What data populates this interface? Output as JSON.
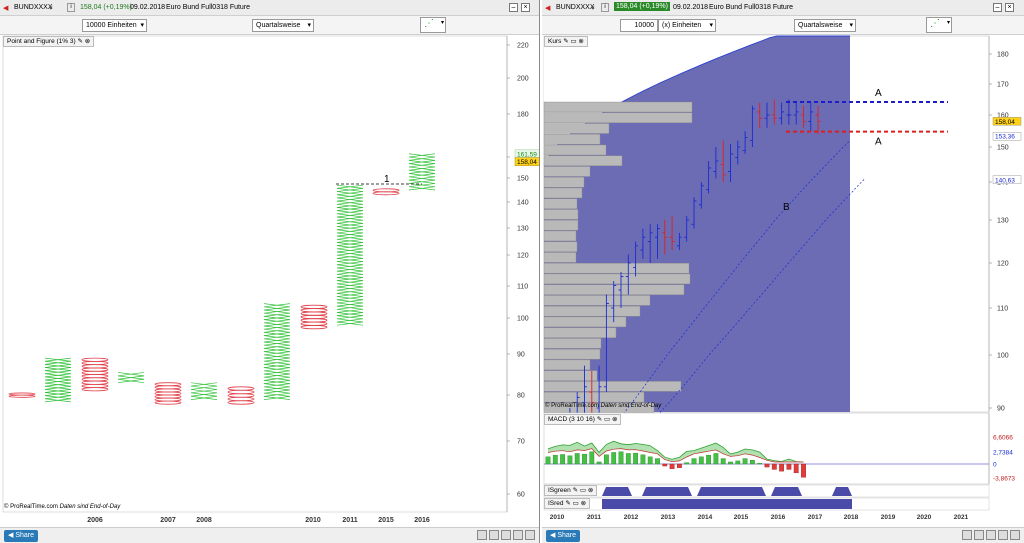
{
  "left_window": {
    "symbol": "BUNDXXXX",
    "info_icon": "info-icon",
    "quote": "158,04 (+0,19%)",
    "date": "09.02.2018",
    "instrument": "Euro Bund Full0318 Future",
    "units": "10000 Einheiten",
    "period": "Quartalsweise",
    "chart_label": "Point and Figure (1% 3)",
    "copyright": "© ProRealTime.com",
    "eod": "Daten sind End-of-Day",
    "share": "Share",
    "years": [
      "2006",
      "2007",
      "2008",
      "2010",
      "2011",
      "2015",
      "2016"
    ],
    "price_ticks": [
      "220",
      "200",
      "180",
      "160",
      "150",
      "140",
      "130",
      "120",
      "110",
      "100",
      "90",
      "80",
      "70",
      "60"
    ],
    "price_tag_high": "161,59",
    "price_tag_last": "158,04",
    "annotation": "1"
  },
  "right_window": {
    "symbol": "BUNDXXXX",
    "info_icon": "info-icon",
    "quote": "158,04 (+0,19%)",
    "date": "09.02.2018",
    "instrument": "Euro Bund Full0318 Future",
    "units_value": "10000",
    "units_label": "(x) Einheiten",
    "period": "Quartalsweise",
    "price_label": "Kurs",
    "macd_label": "MACD (3 10 16)",
    "isgreen_label": "ISgreen",
    "isred_label": "ISred",
    "copyright": "© ProRealTime.com",
    "eod": "Daten sind End-of-Day",
    "share": "Share",
    "years": [
      "2010",
      "2011",
      "2012",
      "2013",
      "2014",
      "2015",
      "2016",
      "2017",
      "2018",
      "2019",
      "2020",
      "2021"
    ],
    "price_ticks": [
      "180",
      "170",
      "160",
      "150",
      "140",
      "130",
      "120",
      "110",
      "100",
      "90"
    ],
    "price_tag_last": "158,04",
    "price_tag_upper": "153,36",
    "price_tag_lower": "140,63",
    "macd_ticks": [
      "6,6066",
      "2,7384",
      "0",
      "-3,8673"
    ],
    "annotation_a_top": "A",
    "annotation_a_bottom": "A",
    "annotation_b": "B"
  },
  "colors": {
    "x_mark": "#33c23a",
    "o_mark": "#e0404a",
    "bar_up": "#1a2bd6",
    "bar_down": "#e02020",
    "cloud": "#6c6cb4",
    "volume_profile": "#b9b9b9",
    "macd_pos": "#44c044",
    "macd_neg": "#e03c3c",
    "dashed_top": "#1e1ec8",
    "dashed_bottom": "#e01e1e",
    "quote_bg": "#2a8a2a"
  },
  "chart_data": [
    {
      "type": "point_and_figure",
      "title": "Point and Figure (1% 3)",
      "columns": [
        {
          "kind": "O",
          "from": 79.5,
          "to": 80.5
        },
        {
          "kind": "X",
          "from": 78.5,
          "to": 89
        },
        {
          "kind": "O",
          "from": 81,
          "to": 89
        },
        {
          "kind": "X",
          "from": 83,
          "to": 85.5
        },
        {
          "kind": "O",
          "from": 78,
          "to": 83
        },
        {
          "kind": "X",
          "from": 79,
          "to": 83
        },
        {
          "kind": "O",
          "from": 78,
          "to": 82
        },
        {
          "kind": "X",
          "from": 79,
          "to": 104.5
        },
        {
          "kind": "O",
          "from": 97,
          "to": 104
        },
        {
          "kind": "X",
          "from": 98,
          "to": 147
        },
        {
          "kind": "O",
          "from": 143,
          "to": 145.5
        },
        {
          "kind": "X",
          "from": 145,
          "to": 161.5
        }
      ],
      "ylim": [
        58,
        222
      ],
      "resistance": 147.5
    },
    {
      "type": "bar",
      "series": [
        {
          "values": [
            [
              79,
              82,
              79,
              81
            ],
            [
              80,
              83,
              79,
              82
            ],
            [
              82,
              85,
              81,
              84
            ],
            [
              84,
              90,
              83,
              88
            ],
            [
              87,
              93,
              86,
              92
            ],
            [
              91,
              98,
              87,
              94
            ],
            [
              93,
              97,
              88,
              91
            ],
            [
              90,
              98,
              85,
              94
            ],
            [
              94,
              113,
              93,
              111
            ],
            [
              110,
              116,
              107,
              115
            ],
            [
              114,
              118,
              110,
              117
            ],
            [
              117,
              122,
              113,
              120
            ],
            [
              119,
              125,
              117,
              124
            ],
            [
              123,
              128,
              121,
              126
            ],
            [
              125,
              129,
              120,
              127
            ],
            [
              126,
              129,
              121,
              128
            ],
            [
              127,
              130,
              122,
              126
            ],
            [
              126,
              131,
              123,
              125
            ],
            [
              124,
              127,
              123,
              126
            ],
            [
              126,
              131,
              125,
              130
            ],
            [
              129,
              136,
              128,
              135
            ],
            [
              134,
              140,
              133,
              139
            ],
            [
              138,
              146,
              137,
              144
            ],
            [
              143,
              150,
              141,
              146
            ],
            [
              145,
              152,
              140,
              142
            ],
            [
              143,
              151,
              140,
              148
            ],
            [
              147,
              152,
              145,
              150
            ],
            [
              149,
              155,
              148,
              153
            ],
            [
              152,
              163,
              150,
              162
            ],
            [
              161,
              164,
              156,
              159
            ],
            [
              159,
              164,
              156,
              160
            ],
            [
              160,
              165,
              157,
              159
            ],
            [
              159,
              164,
              157,
              161
            ],
            [
              160,
              165,
              157,
              160
            ],
            [
              160,
              164,
              157,
              161
            ],
            [
              160,
              163,
              156,
              158
            ],
            [
              158,
              164,
              155,
              161
            ],
            [
              160,
              163,
              154,
              158
            ]
          ]
        }
      ],
      "ylim": [
        88,
        186
      ]
    },
    {
      "type": "bar",
      "title": "MACD (3 10 16)",
      "values": [
        2.1,
        2.6,
        2.8,
        2.4,
        3.1,
        2.9,
        3.6,
        0.6,
        2.7,
        3.4,
        3.6,
        3.1,
        3.2,
        2.7,
        2.1,
        1.6,
        -0.6,
        -1.4,
        -1.1,
        0.4,
        1.6,
        2.1,
        2.6,
        3.1,
        1.6,
        0.6,
        0.9,
        1.6,
        1.1,
        0.2,
        -0.9,
        -1.6,
        -2.1,
        -1.6,
        -2.6,
        -3.9
      ]
    }
  ]
}
